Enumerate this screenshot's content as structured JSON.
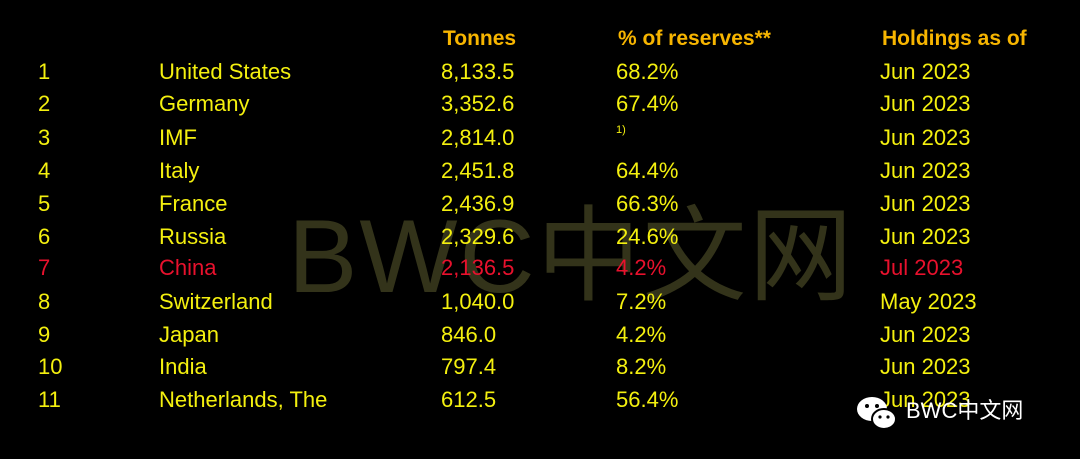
{
  "header": {
    "columns": [
      "Tonnes",
      "% of reserves**",
      "Holdings as of"
    ]
  },
  "table": {
    "rows": [
      [
        "1",
        "United States",
        "8,133.5",
        "68.2%",
        "Jun 2023"
      ],
      [
        "2",
        "Germany",
        "3,352.6",
        "67.4%",
        "Jun 2023"
      ],
      [
        "3",
        "IMF",
        "2,814.0",
        "1)",
        "Jun 2023"
      ],
      [
        "4",
        "Italy",
        "2,451.8",
        "64.4%",
        "Jun 2023"
      ],
      [
        "5",
        "France",
        "2,436.9",
        "66.3%",
        "Jun 2023"
      ],
      [
        "6",
        "Russia",
        "2,329.6",
        "24.6%",
        "Jun 2023"
      ],
      [
        "7",
        "China",
        "2,136.5",
        "4.2%",
        "Jul 2023"
      ],
      [
        "8",
        "Switzerland",
        "1,040.0",
        "7.2%",
        "May 2023"
      ],
      [
        "9",
        "Japan",
        "846.0",
        "4.2%",
        "Jun 2023"
      ],
      [
        "10",
        "India",
        "797.4",
        "8.2%",
        "Jun 2023"
      ],
      [
        "11",
        "Netherlands, The",
        "612.5",
        "56.4%",
        "Jun 2023"
      ]
    ]
  },
  "watermark": "BWC中文网",
  "logo": "BWC中文网"
}
